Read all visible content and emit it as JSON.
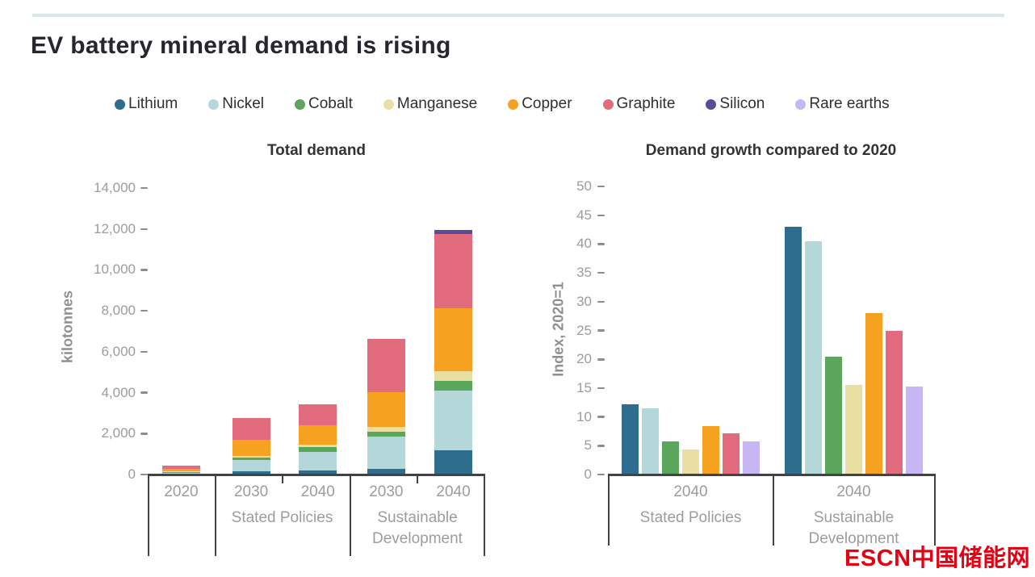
{
  "page": {
    "title": "EV battery mineral demand is rising",
    "watermark": "ESCN中国储能网",
    "watermark_color": "#e60012",
    "accent_color": "#d9e8e8"
  },
  "legend": {
    "items": [
      {
        "label": "Lithium",
        "color": "#2e6d8e"
      },
      {
        "label": "Nickel",
        "color": "#b4d7da"
      },
      {
        "label": "Cobalt",
        "color": "#5aa65c"
      },
      {
        "label": "Manganese",
        "color": "#eadfa3"
      },
      {
        "label": "Copper",
        "color": "#f6a11f"
      },
      {
        "label": "Graphite",
        "color": "#e26b7e"
      },
      {
        "label": "Silicon",
        "color": "#5a4b96"
      },
      {
        "label": "Rare earths",
        "color": "#c8b5f4"
      }
    ]
  },
  "chart_data": [
    {
      "type": "bar",
      "variant": "stacked",
      "title": "Total demand",
      "ylabel": "kilotonnes",
      "ylim": [
        0,
        14000
      ],
      "ytick_values": [
        0,
        2000,
        4000,
        6000,
        8000,
        10000,
        12000,
        14000
      ],
      "ytick_labels": [
        "0",
        "2,000",
        "4,000",
        "6,000",
        "8,000",
        "10,000",
        "12,000",
        "14,000"
      ],
      "grid": false,
      "series": [
        "Lithium",
        "Nickel",
        "Cobalt",
        "Manganese",
        "Copper",
        "Graphite",
        "Silicon"
      ],
      "groups": [
        {
          "label": "",
          "bars": [
            {
              "year": "2020",
              "values": [
                20,
                75,
                25,
                20,
                120,
                180,
                0
              ]
            }
          ]
        },
        {
          "label": "Stated Policies",
          "bars": [
            {
              "year": "2030",
              "values": [
                150,
                550,
                130,
                80,
                790,
                1060,
                0
              ]
            },
            {
              "year": "2040",
              "values": [
                210,
                900,
                225,
                130,
                925,
                1055,
                0
              ]
            }
          ]
        },
        {
          "label": "Sustainable Development",
          "bars": [
            {
              "year": "2030",
              "values": [
                290,
                1570,
                240,
                240,
                1700,
                2575,
                0
              ]
            },
            {
              "year": "2040",
              "values": [
                1200,
                2905,
                460,
                465,
                3100,
                3630,
                170
              ]
            }
          ]
        }
      ]
    },
    {
      "type": "bar",
      "variant": "grouped",
      "title": "Demand growth compared to 2020",
      "ylabel": "Index, 2020=1",
      "ylim": [
        0,
        50
      ],
      "ytick_values": [
        0,
        5,
        10,
        15,
        20,
        25,
        30,
        35,
        40,
        45,
        50
      ],
      "ytick_labels": [
        "0",
        "5",
        "10",
        "15",
        "20",
        "25",
        "30",
        "35",
        "40",
        "45",
        "50"
      ],
      "grid": false,
      "series": [
        "Lithium",
        "Nickel",
        "Cobalt",
        "Manganese",
        "Copper",
        "Graphite",
        "Rare earths"
      ],
      "groups": [
        {
          "label": "Stated Policies",
          "year": "2040",
          "values": [
            12.2,
            11.5,
            5.8,
            4.3,
            8.4,
            7.1,
            5.8
          ]
        },
        {
          "label": "Sustainable Development",
          "year": "2040",
          "values": [
            43,
            40.5,
            20.5,
            15.6,
            28,
            25,
            15.3
          ]
        }
      ]
    }
  ]
}
